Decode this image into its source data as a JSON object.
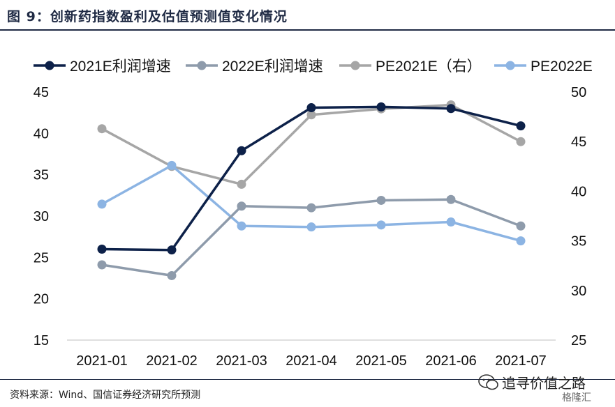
{
  "figure_title": "图 9：创新药指数盈利及估值预测值变化情况",
  "source": "资料来源：Wind、国信证券经济研究所预测",
  "watermark": {
    "text": "追寻价值之路",
    "brand": "格隆汇",
    "icon": "wechat-icon"
  },
  "chart_data": {
    "type": "line",
    "categories": [
      "2021-01",
      "2021-02",
      "2021-03",
      "2021-04",
      "2021-05",
      "2021-06",
      "2021-07"
    ],
    "y_left": {
      "min": 15,
      "max": 45,
      "ticks": [
        15,
        20,
        25,
        30,
        35,
        40,
        45
      ]
    },
    "y_right": {
      "min": 25,
      "max": 50,
      "ticks": [
        25,
        30,
        35,
        40,
        45,
        50
      ]
    },
    "legend_position": "top",
    "grid": false,
    "series": [
      {
        "name": "2021E利润增速",
        "axis": "left",
        "color": "#0d2149",
        "values": [
          26.0,
          25.9,
          37.9,
          43.1,
          43.2,
          43.0,
          40.9
        ]
      },
      {
        "name": "2022E利润增速",
        "axis": "left",
        "color": "#8e9bab",
        "values": [
          24.1,
          22.8,
          31.2,
          31.0,
          31.9,
          32.0,
          28.8
        ]
      },
      {
        "name": "PE2021E（右）",
        "axis": "right",
        "color": "#a6a6a6",
        "values": [
          46.3,
          42.5,
          40.7,
          47.7,
          48.3,
          48.7,
          45.0
        ]
      },
      {
        "name": "PE2022E",
        "axis": "right",
        "color": "#8cb4e3",
        "values": [
          38.7,
          42.6,
          36.5,
          36.4,
          36.6,
          36.9,
          35.0
        ]
      }
    ]
  }
}
